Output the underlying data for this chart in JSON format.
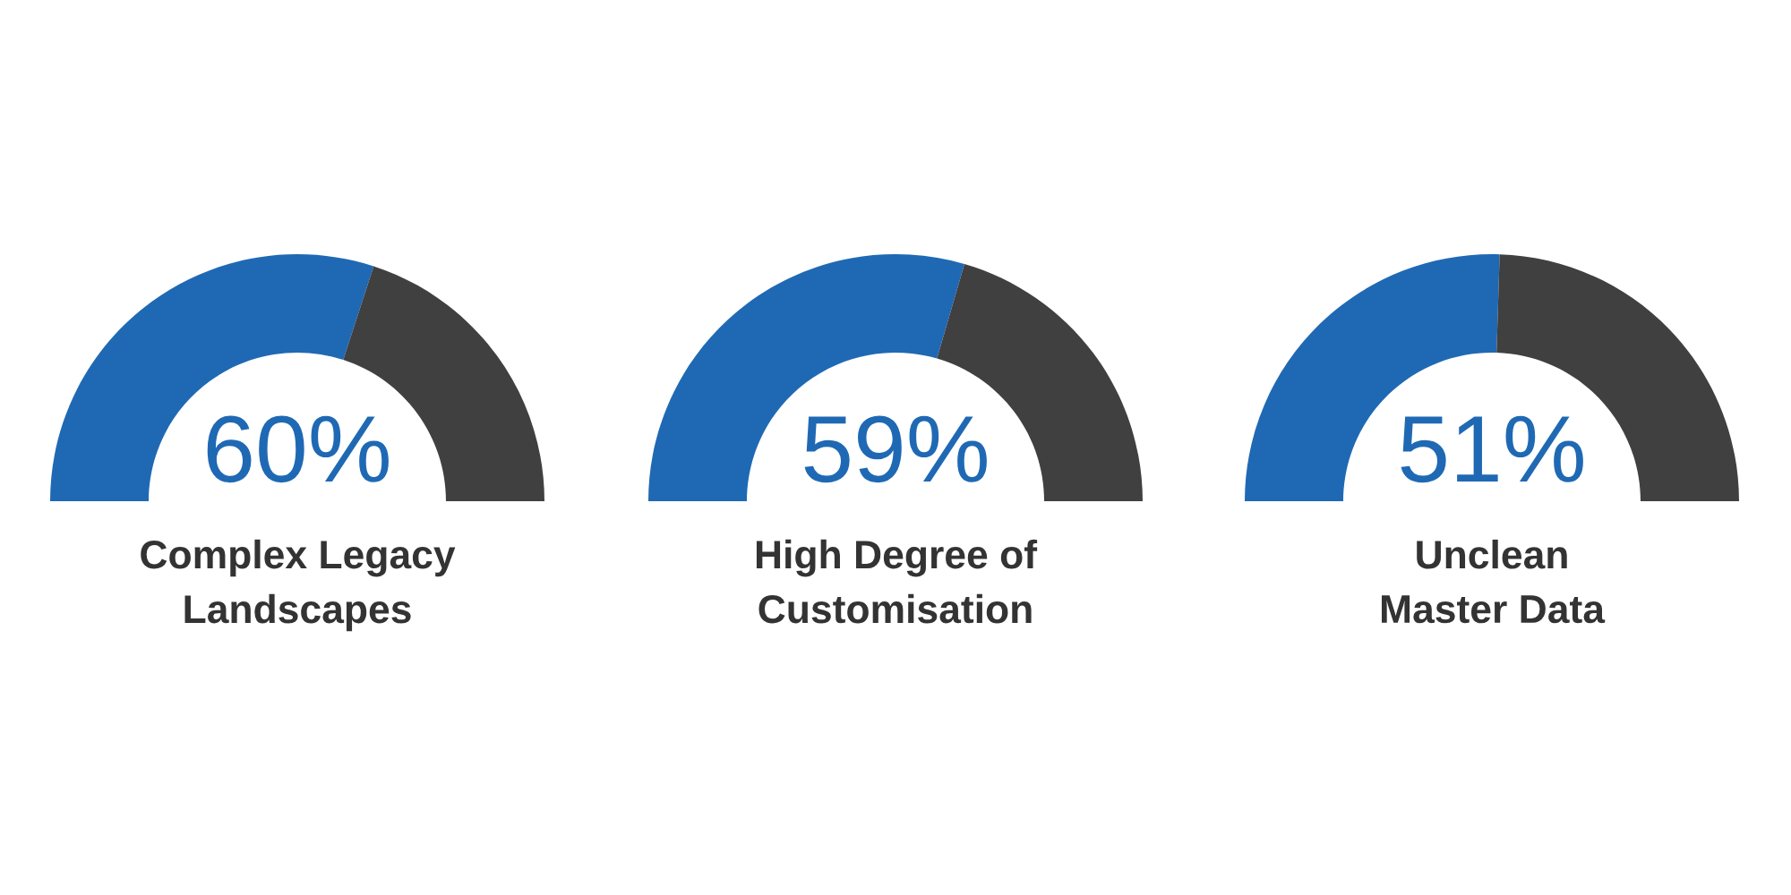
{
  "chart_data": [
    {
      "type": "donut",
      "title": "Complex Legacy\nLandscapes",
      "categories": [
        null,
        null
      ],
      "values": [
        60,
        40
      ],
      "colors": [
        "#1f69b4",
        "#404040"
      ],
      "value_labels": [
        "60%",
        null
      ]
    },
    {
      "type": "donut",
      "title": "High Degree of\nCustomisation",
      "categories": [
        null,
        null
      ],
      "values": [
        59,
        41
      ],
      "colors": [
        "#1f69b4",
        "#404040"
      ],
      "value_labels": [
        "59%",
        null
      ]
    },
    {
      "type": "donut",
      "title": "Unclean\nMaster Data",
      "categories": [
        null,
        null
      ],
      "values": [
        51,
        49
      ],
      "colors": [
        "#1f69b4",
        "#404040"
      ],
      "value_labels": [
        "51%",
        null
      ]
    }
  ]
}
